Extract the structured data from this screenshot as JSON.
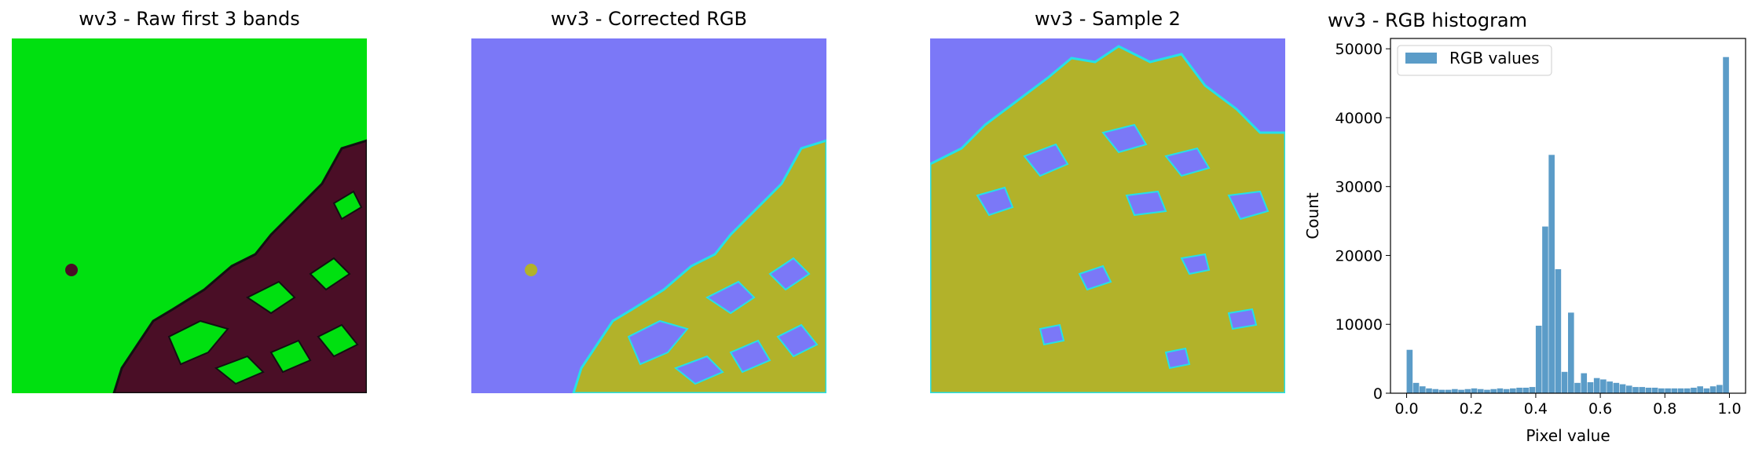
{
  "panels": [
    {
      "title": "wv3 - Raw first 3 bands",
      "kind": "raw",
      "base_color": "#00e010",
      "blob_color": "#4a0e26",
      "edge_color": "#111111"
    },
    {
      "title": "wv3 - Corrected RGB",
      "kind": "corrected",
      "base_color": "#7b78f7",
      "blob_color": "#b2b22a",
      "edge_color": "#26e0e6"
    },
    {
      "title": "wv3 - Sample 2",
      "kind": "sample",
      "base_color": "#7b78f7",
      "blob_color": "#b2b22a",
      "edge_color": "#26e0e6"
    }
  ],
  "chart_data": {
    "type": "bar",
    "title": "wv3 - RGB histogram",
    "xlabel": "Pixel value",
    "ylabel": "Count",
    "xlim": [
      -0.05,
      1.05
    ],
    "ylim": [
      0,
      51500
    ],
    "xticks": [
      0.0,
      0.2,
      0.4,
      0.6,
      0.8,
      1.0
    ],
    "xtick_labels": [
      "0.0",
      "0.2",
      "0.4",
      "0.6",
      "0.8",
      "1.0"
    ],
    "yticks": [
      0,
      10000,
      20000,
      30000,
      40000,
      50000
    ],
    "ytick_labels": [
      "0",
      "10000",
      "20000",
      "30000",
      "40000",
      "50000"
    ],
    "legend": {
      "label": "RGB values",
      "position": "top-left"
    },
    "bar_color": "#5b9cc8",
    "bins": 50,
    "bin_start": 0.0,
    "bin_width": 0.02,
    "series": [
      {
        "name": "RGB values",
        "values": [
          6300,
          1500,
          1000,
          700,
          600,
          500,
          500,
          600,
          500,
          600,
          700,
          600,
          500,
          600,
          700,
          600,
          700,
          800,
          800,
          900,
          9800,
          24200,
          34600,
          18000,
          3100,
          11700,
          1500,
          2900,
          1600,
          2200,
          2000,
          1700,
          1500,
          1300,
          1100,
          900,
          900,
          800,
          800,
          700,
          700,
          700,
          700,
          700,
          800,
          1000,
          700,
          1000,
          1200,
          48800
        ]
      }
    ]
  }
}
